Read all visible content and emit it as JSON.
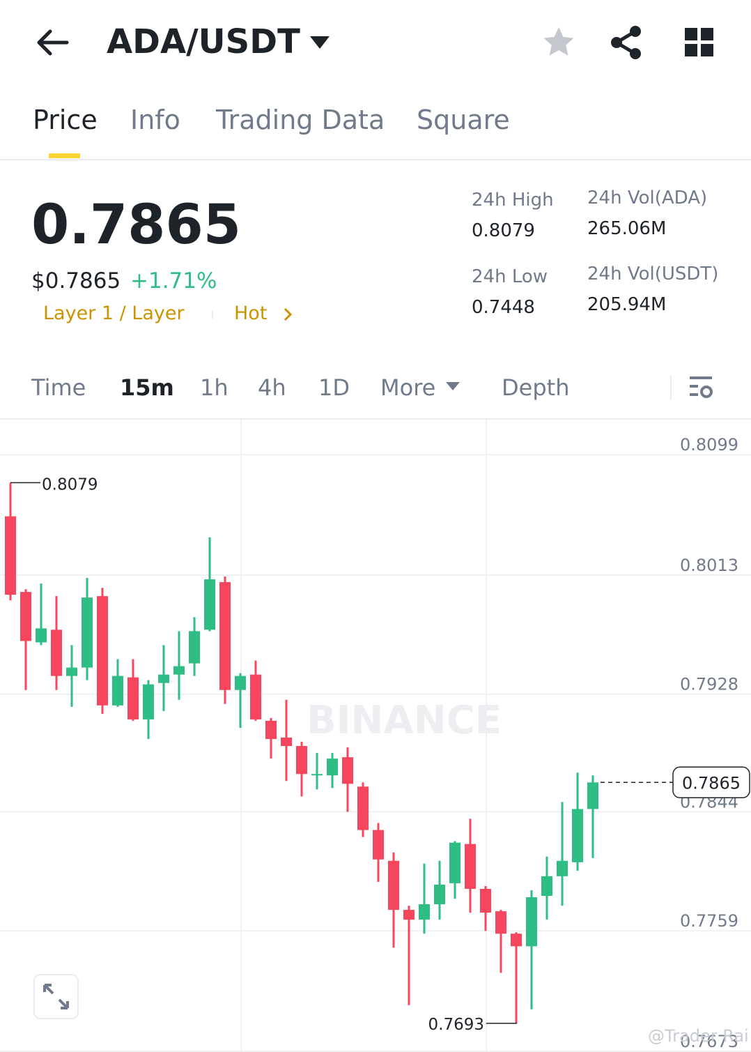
{
  "header": {
    "pair": "ADA/USDT"
  },
  "tabs": [
    "Price",
    "Info",
    "Trading Data",
    "Square"
  ],
  "ticker": {
    "price": "0.7865",
    "usd_price": "$0.7865",
    "change": "+1.71%",
    "tags": [
      "Layer 1 / Layer",
      "Hot"
    ]
  },
  "stats": [
    {
      "label": "24h High",
      "value": "0.8079"
    },
    {
      "label": "24h Vol(ADA)",
      "value": "265.06M"
    },
    {
      "label": "24h Low",
      "value": "0.7448"
    },
    {
      "label": "24h Vol(USDT)",
      "value": "205.94M"
    }
  ],
  "intervals": [
    "Time",
    "15m",
    "1h",
    "4h",
    "1D",
    "More",
    "Depth"
  ],
  "chart": {
    "type": "candlestick",
    "ylim": [
      0.7673,
      0.8124
    ],
    "yticks": [
      0.8099,
      0.8013,
      0.7928,
      0.7844,
      0.7759,
      0.7673
    ],
    "grid": true,
    "up_color": "#2ebd85",
    "down_color": "#f6465d",
    "watermark": "BINANCE",
    "max_label": 0.8079,
    "min_label": 0.7693,
    "last_price": 0.7865,
    "candles": [
      {
        "open": 0.8055,
        "high": 0.8079,
        "low": 0.7995,
        "close": 0.7999
      },
      {
        "open": 0.8001,
        "high": 0.8003,
        "low": 0.7931,
        "close": 0.7966
      },
      {
        "open": 0.7965,
        "high": 0.8007,
        "low": 0.7963,
        "close": 0.7975
      },
      {
        "open": 0.7974,
        "high": 0.7998,
        "low": 0.7931,
        "close": 0.7941
      },
      {
        "open": 0.7941,
        "high": 0.7963,
        "low": 0.7919,
        "close": 0.7947
      },
      {
        "open": 0.7947,
        "high": 0.8011,
        "low": 0.7938,
        "close": 0.7997
      },
      {
        "open": 0.7998,
        "high": 0.8004,
        "low": 0.7914,
        "close": 0.792
      },
      {
        "open": 0.792,
        "high": 0.7953,
        "low": 0.7919,
        "close": 0.7941
      },
      {
        "open": 0.794,
        "high": 0.7953,
        "low": 0.7909,
        "close": 0.791
      },
      {
        "open": 0.791,
        "high": 0.7938,
        "low": 0.7896,
        "close": 0.7935
      },
      {
        "open": 0.7936,
        "high": 0.7963,
        "low": 0.7916,
        "close": 0.7942
      },
      {
        "open": 0.7942,
        "high": 0.7973,
        "low": 0.7924,
        "close": 0.7948
      },
      {
        "open": 0.795,
        "high": 0.7983,
        "low": 0.7941,
        "close": 0.7973
      },
      {
        "open": 0.7974,
        "high": 0.804,
        "low": 0.7973,
        "close": 0.801
      },
      {
        "open": 0.8008,
        "high": 0.8012,
        "low": 0.7921,
        "close": 0.7931
      },
      {
        "open": 0.7931,
        "high": 0.7943,
        "low": 0.7904,
        "close": 0.7941
      },
      {
        "open": 0.7942,
        "high": 0.7952,
        "low": 0.7909,
        "close": 0.791
      },
      {
        "open": 0.7909,
        "high": 0.7911,
        "low": 0.7882,
        "close": 0.7896
      },
      {
        "open": 0.7897,
        "high": 0.7924,
        "low": 0.7866,
        "close": 0.7891
      },
      {
        "open": 0.7891,
        "high": 0.7894,
        "low": 0.7855,
        "close": 0.7871
      },
      {
        "open": 0.787,
        "high": 0.7886,
        "low": 0.786,
        "close": 0.7871
      },
      {
        "open": 0.787,
        "high": 0.7886,
        "low": 0.7861,
        "close": 0.7882
      },
      {
        "open": 0.7883,
        "high": 0.789,
        "low": 0.7844,
        "close": 0.7864
      },
      {
        "open": 0.7862,
        "high": 0.7865,
        "low": 0.7826,
        "close": 0.7831
      },
      {
        "open": 0.7831,
        "high": 0.7836,
        "low": 0.7794,
        "close": 0.781
      },
      {
        "open": 0.7809,
        "high": 0.7815,
        "low": 0.7747,
        "close": 0.7774
      },
      {
        "open": 0.7774,
        "high": 0.7777,
        "low": 0.7706,
        "close": 0.7767
      },
      {
        "open": 0.7767,
        "high": 0.7807,
        "low": 0.7757,
        "close": 0.7778
      },
      {
        "open": 0.7778,
        "high": 0.7809,
        "low": 0.7767,
        "close": 0.7792
      },
      {
        "open": 0.7793,
        "high": 0.7823,
        "low": 0.7782,
        "close": 0.7822
      },
      {
        "open": 0.7821,
        "high": 0.7839,
        "low": 0.7772,
        "close": 0.7789
      },
      {
        "open": 0.7789,
        "high": 0.7791,
        "low": 0.7759,
        "close": 0.7772
      },
      {
        "open": 0.7773,
        "high": 0.7774,
        "low": 0.7729,
        "close": 0.7757
      },
      {
        "open": 0.7757,
        "high": 0.7758,
        "low": 0.7693,
        "close": 0.7748
      },
      {
        "open": 0.7748,
        "high": 0.7788,
        "low": 0.7703,
        "close": 0.7783
      },
      {
        "open": 0.7784,
        "high": 0.7812,
        "low": 0.7767,
        "close": 0.7798
      },
      {
        "open": 0.7798,
        "high": 0.7851,
        "low": 0.7777,
        "close": 0.7809
      },
      {
        "open": 0.7808,
        "high": 0.7872,
        "low": 0.7802,
        "close": 0.7846
      },
      {
        "open": 0.7846,
        "high": 0.787,
        "low": 0.7811,
        "close": 0.7865
      }
    ]
  },
  "watermark": "@Trader Rai"
}
